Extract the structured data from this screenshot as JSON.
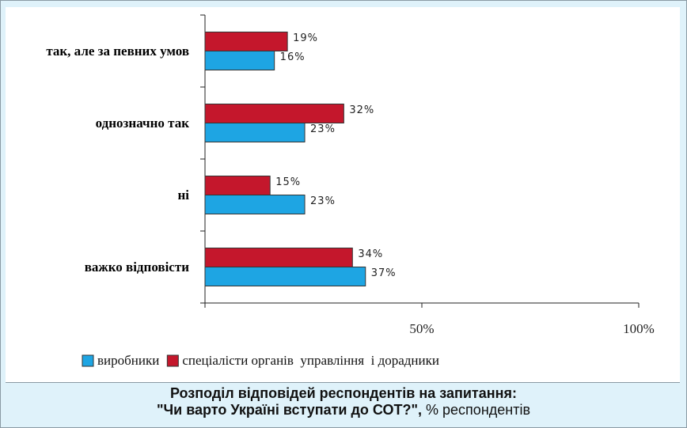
{
  "chart_data": {
    "type": "barh",
    "title": "Розподіл відповідей респондентів на запитання:",
    "subtitle": "\"Чи варто Україні вступати до СОТ?\",",
    "annotations": [
      "% респондентів"
    ],
    "categories": [
      "так, але за певних умов",
      "однозначно так",
      "ні",
      "важко відповісти"
    ],
    "series": [
      {
        "name": "виробники",
        "color": "#1ea5e3",
        "values": [
          16,
          23,
          23,
          37
        ],
        "value_labels": [
          "16%",
          "23%",
          "23%",
          "37%"
        ]
      },
      {
        "name": "спеціалісти органів  управління  і дорадники",
        "color": "#c4172c",
        "values": [
          19,
          32,
          15,
          34
        ],
        "value_labels": [
          "19%",
          "32%",
          "15%",
          "34%"
        ]
      }
    ],
    "xlim": [
      0,
      100
    ],
    "xticks": [
      {
        "value": 50,
        "label": "50%"
      },
      {
        "value": 100,
        "label": "100%"
      }
    ],
    "legend": "bottom"
  }
}
